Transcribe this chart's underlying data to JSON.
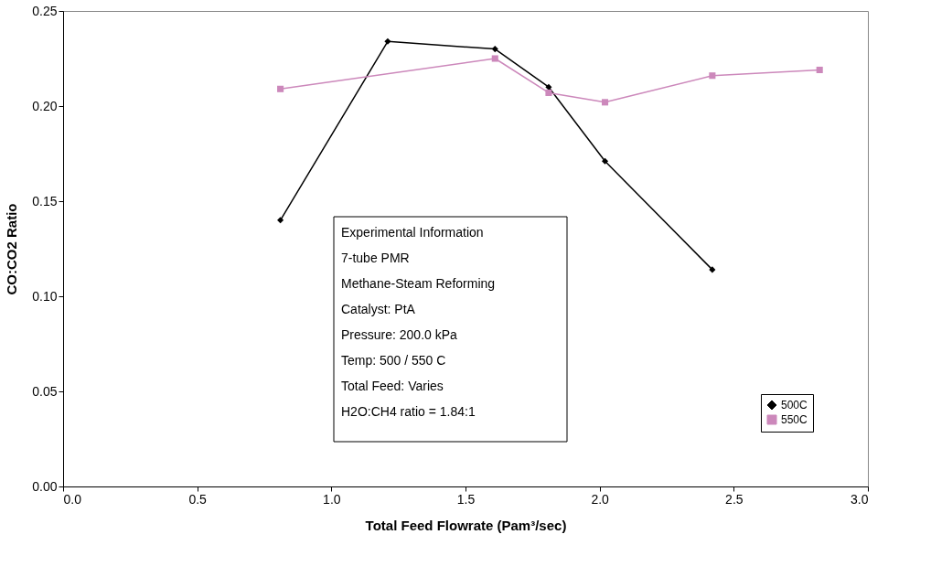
{
  "chart_data": {
    "type": "line",
    "xlabel": "Total Feed Flowrate (Pam³/sec)",
    "ylabel": "CO:CO2 Ratio",
    "xlim": [
      0,
      3
    ],
    "xticks": [
      {
        "value": 0,
        "label": "0.0"
      },
      0.5,
      {
        "value": 1,
        "label": "1.0"
      },
      1.5,
      {
        "value": 2,
        "label": "2.0"
      },
      2.5,
      {
        "value": 3,
        "label": "3.0"
      }
    ],
    "ylim": [
      0,
      0.25
    ],
    "yticks": [
      {
        "value": 0,
        "label": "0.00"
      },
      0.05,
      {
        "value": 0.1,
        "label": "0.10"
      },
      0.15,
      {
        "value": 0.2,
        "label": "0.20"
      },
      0.25
    ],
    "grid": false,
    "legend": "bottom right",
    "annotations": [
      "Experimental Information",
      "7-tube PMR",
      "Methane-Steam Reforming",
      "Catalyst:  PtA",
      "Pressure: 200.0 kPa",
      "Temp: 500 / 550 C",
      "Total Feed: Varies",
      "H2O:CH4 ratio = 1.84:1"
    ],
    "series": [
      {
        "name": "500C",
        "color": "#000000",
        "marker": "diamond",
        "x": [
          0.81,
          1.21,
          1.61,
          1.81,
          2.02,
          2.42
        ],
        "values": [
          0.14,
          0.234,
          0.23,
          0.21,
          0.171,
          0.114
        ]
      },
      {
        "name": "550C",
        "color": "#cc88bb",
        "marker": "square",
        "x": [
          0.81,
          1.61,
          1.81,
          2.02,
          2.42,
          2.82
        ],
        "values": [
          0.209,
          0.225,
          0.207,
          0.202,
          0.216,
          0.219
        ]
      }
    ]
  }
}
